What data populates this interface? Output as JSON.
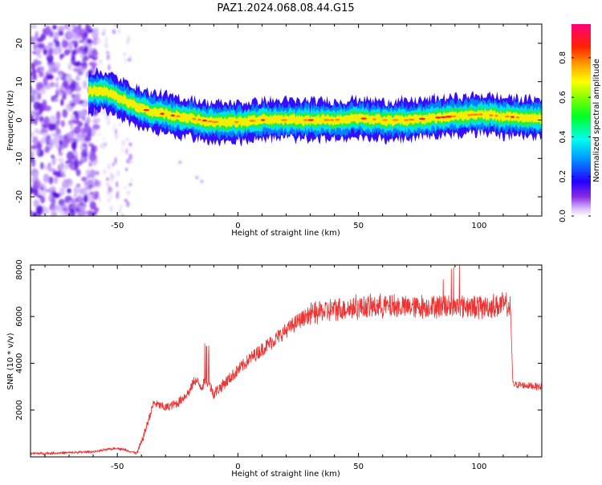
{
  "title": "PAZ1.2024.068.08.44.G15",
  "chart_data": [
    {
      "type": "heatmap",
      "xlabel": "Height of straight line (km)",
      "ylabel": "Frequency (Hz)",
      "xlim": [
        -86,
        126
      ],
      "ylim": [
        -25,
        25
      ],
      "xticks": [
        -50,
        0,
        50,
        100
      ],
      "yticks": [
        -20,
        -10,
        0,
        10,
        20
      ],
      "colormap": "gist_rainbow_r with white-to-violet low end",
      "colorbar": {
        "label": "Normalized spectral amplitude",
        "range": [
          0,
          0.97
        ],
        "ticks": [
          0.0,
          0.2,
          0.4,
          0.6,
          0.8
        ]
      },
      "ridge": {
        "x": [
          -60,
          -55,
          -50,
          -45,
          -40,
          -35,
          -30,
          -25,
          -20,
          -15,
          -10,
          -5,
          0,
          10,
          20,
          30,
          40,
          50,
          60,
          70,
          80,
          90,
          100,
          110,
          120,
          126
        ],
        "frequency": [
          7.5,
          7.5,
          6,
          4.5,
          3,
          2,
          1.5,
          1,
          0.5,
          0,
          -0.5,
          -0.5,
          -0.5,
          0,
          0,
          0,
          0,
          0.5,
          0,
          0,
          0.5,
          1,
          1.5,
          1,
          0.5,
          0.5
        ]
      }
    },
    {
      "type": "line",
      "xlabel": "Height of straight line (km)",
      "ylabel": "SNR (10 * v/v)",
      "xlim": [
        -86,
        126
      ],
      "ylim": [
        0,
        8200
      ],
      "xticks": [
        -50,
        0,
        50,
        100
      ],
      "yticks": [
        2000,
        4000,
        6000,
        8000
      ],
      "color": "#ee3333",
      "series": [
        {
          "x": [
            -86,
            -80,
            -70,
            -60,
            -55,
            -50,
            -45,
            -42,
            -40,
            -37,
            -35,
            -30,
            -25,
            -20,
            -18,
            -15,
            -13,
            -10,
            -5,
            0,
            5,
            10,
            15,
            20,
            25,
            30,
            40,
            50,
            60,
            70,
            80,
            90,
            100,
            110,
            113,
            114,
            120,
            126
          ],
          "y": [
            150,
            150,
            180,
            220,
            300,
            380,
            250,
            150,
            600,
            1600,
            2300,
            2100,
            2300,
            2800,
            3300,
            3000,
            3300,
            2700,
            3200,
            3700,
            4200,
            4600,
            5000,
            5400,
            5800,
            6100,
            6300,
            6400,
            6450,
            6400,
            6450,
            6500,
            6400,
            6500,
            6400,
            3100,
            3050,
            3000
          ]
        }
      ]
    }
  ]
}
